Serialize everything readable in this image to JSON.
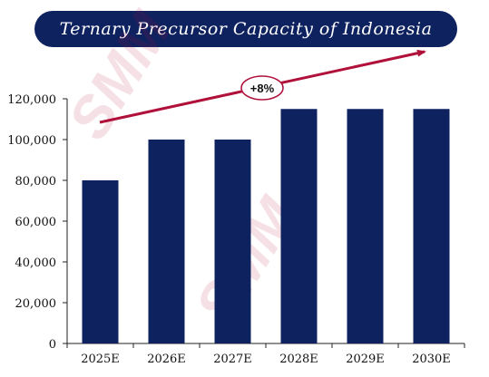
{
  "title": "Ternary Precursor Capacity of Indonesia",
  "watermark": "SMM",
  "colors": {
    "bar": "#0f2260",
    "accent": "#b0103a",
    "title_bg": "#0f2260"
  },
  "chart_data": {
    "type": "bar",
    "title": "Ternary Precursor Capacity of Indonesia",
    "xlabel": "",
    "ylabel": "",
    "categories": [
      "2025E",
      "2026E",
      "2027E",
      "2028E",
      "2029E",
      "2030E"
    ],
    "values": [
      80000,
      100000,
      100000,
      115000,
      115000,
      115000
    ],
    "ylim": [
      0,
      120000
    ],
    "yticks": [
      0,
      20000,
      40000,
      60000,
      80000,
      100000,
      120000
    ],
    "ytick_labels": [
      "0",
      "20,000",
      "40,000",
      "60,000",
      "80,000",
      "100,000",
      "120,000"
    ],
    "annotation": {
      "text": "+8%",
      "type": "trend-arrow"
    },
    "grid": false,
    "legend": "none"
  }
}
